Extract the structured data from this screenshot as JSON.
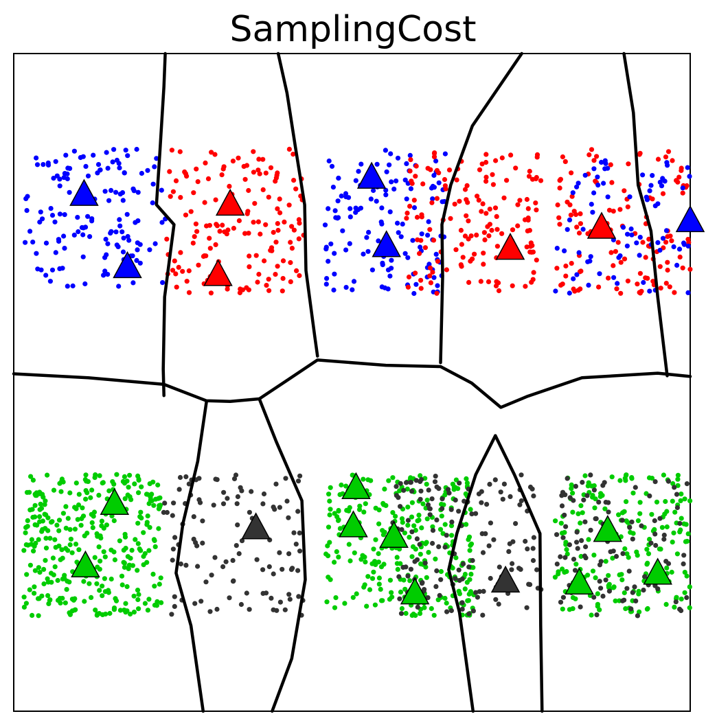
{
  "chart_data": {
    "type": "scatter",
    "title": "SamplingCost",
    "xlabel": "",
    "ylabel": "",
    "xlim": [
      0,
      1
    ],
    "ylim": [
      0,
      1
    ],
    "grid": false,
    "colors": {
      "blue": "#0000ff",
      "red": "#ff0000",
      "green": "#00cc00",
      "dark": "#333333",
      "boundary": "#000000"
    },
    "point_clusters": [
      {
        "class": "blue",
        "x": [
          0.015,
          0.225
        ],
        "y": [
          0.645,
          0.855
        ],
        "count": 140
      },
      {
        "class": "red",
        "x": [
          0.225,
          0.43
        ],
        "y": [
          0.635,
          0.855
        ],
        "count": 150
      },
      {
        "class": "blue",
        "x": [
          0.46,
          0.64
        ],
        "y": [
          0.635,
          0.855
        ],
        "count": 130
      },
      {
        "class": "red",
        "x": [
          0.58,
          0.78
        ],
        "y": [
          0.635,
          0.855
        ],
        "count": 150
      },
      {
        "class": "red",
        "x": [
          0.8,
          1.0
        ],
        "y": [
          0.635,
          0.855
        ],
        "count": 120
      },
      {
        "class": "blue",
        "x": [
          0.8,
          1.0
        ],
        "y": [
          0.635,
          0.855
        ],
        "count": 80
      },
      {
        "class": "green",
        "x": [
          0.015,
          0.22
        ],
        "y": [
          0.145,
          0.36
        ],
        "count": 330
      },
      {
        "class": "dark",
        "x": [
          0.22,
          0.43
        ],
        "y": [
          0.145,
          0.36
        ],
        "count": 110
      },
      {
        "class": "green",
        "x": [
          0.46,
          0.68
        ],
        "y": [
          0.145,
          0.36
        ],
        "count": 280
      },
      {
        "class": "dark",
        "x": [
          0.56,
          0.78
        ],
        "y": [
          0.145,
          0.36
        ],
        "count": 150
      },
      {
        "class": "green",
        "x": [
          0.8,
          1.0
        ],
        "y": [
          0.145,
          0.36
        ],
        "count": 190
      },
      {
        "class": "dark",
        "x": [
          0.8,
          1.0
        ],
        "y": [
          0.145,
          0.36
        ],
        "count": 110
      }
    ],
    "centers": [
      {
        "class": "blue",
        "x": 0.104,
        "y": 0.787
      },
      {
        "class": "blue",
        "x": 0.168,
        "y": 0.677
      },
      {
        "class": "red",
        "x": 0.32,
        "y": 0.772
      },
      {
        "class": "red",
        "x": 0.302,
        "y": 0.665
      },
      {
        "class": "blue",
        "x": 0.529,
        "y": 0.813
      },
      {
        "class": "blue",
        "x": 0.551,
        "y": 0.709
      },
      {
        "class": "red",
        "x": 0.734,
        "y": 0.705
      },
      {
        "class": "red",
        "x": 0.869,
        "y": 0.737
      },
      {
        "class": "blue",
        "x": 1.0,
        "y": 0.747
      },
      {
        "class": "green",
        "x": 0.149,
        "y": 0.317
      },
      {
        "class": "green",
        "x": 0.106,
        "y": 0.222
      },
      {
        "class": "dark",
        "x": 0.358,
        "y": 0.28
      },
      {
        "class": "green",
        "x": 0.506,
        "y": 0.341
      },
      {
        "class": "green",
        "x": 0.502,
        "y": 0.283
      },
      {
        "class": "green",
        "x": 0.562,
        "y": 0.267
      },
      {
        "class": "green",
        "x": 0.593,
        "y": 0.181
      },
      {
        "class": "dark",
        "x": 0.727,
        "y": 0.199
      },
      {
        "class": "green",
        "x": 0.878,
        "y": 0.276
      },
      {
        "class": "green",
        "x": 0.836,
        "y": 0.196
      },
      {
        "class": "green",
        "x": 0.952,
        "y": 0.211
      }
    ],
    "boundaries": [
      [
        [
          0.224,
          1.0
        ],
        [
          0.222,
          0.95
        ],
        [
          0.216,
          0.85
        ],
        [
          0.211,
          0.77
        ],
        [
          0.237,
          0.74
        ],
        [
          0.223,
          0.63
        ],
        [
          0.221,
          0.52
        ],
        [
          0.222,
          0.48
        ]
      ],
      [
        [
          0.391,
          1.0
        ],
        [
          0.404,
          0.94
        ],
        [
          0.416,
          0.86
        ],
        [
          0.43,
          0.77
        ],
        [
          0.432,
          0.67
        ],
        [
          0.445,
          0.57
        ],
        [
          0.449,
          0.54
        ]
      ],
      [
        [
          0.751,
          1.0
        ],
        [
          0.678,
          0.89
        ],
        [
          0.646,
          0.8
        ],
        [
          0.633,
          0.74
        ],
        [
          0.634,
          0.66
        ],
        [
          0.631,
          0.53
        ]
      ],
      [
        [
          0.902,
          1.0
        ],
        [
          0.916,
          0.91
        ],
        [
          0.923,
          0.8
        ],
        [
          0.942,
          0.73
        ],
        [
          0.952,
          0.63
        ],
        [
          0.966,
          0.51
        ]
      ],
      [
        [
          0.0,
          0.513
        ],
        [
          0.11,
          0.507
        ],
        [
          0.222,
          0.497
        ],
        [
          0.285,
          0.472
        ],
        [
          0.32,
          0.471
        ],
        [
          0.363,
          0.475
        ],
        [
          0.404,
          0.503
        ],
        [
          0.449,
          0.534
        ],
        [
          0.55,
          0.526
        ],
        [
          0.631,
          0.524
        ],
        [
          0.677,
          0.499
        ],
        [
          0.72,
          0.462
        ],
        [
          0.76,
          0.479
        ],
        [
          0.84,
          0.507
        ],
        [
          0.952,
          0.514
        ],
        [
          1.0,
          0.509
        ]
      ],
      [
        [
          0.285,
          0.471
        ],
        [
          0.272,
          0.38
        ],
        [
          0.25,
          0.285
        ],
        [
          0.24,
          0.21
        ],
        [
          0.262,
          0.13
        ],
        [
          0.28,
          0.0
        ]
      ],
      [
        [
          0.363,
          0.475
        ],
        [
          0.388,
          0.41
        ],
        [
          0.426,
          0.32
        ],
        [
          0.431,
          0.2
        ],
        [
          0.411,
          0.08
        ],
        [
          0.382,
          0.0
        ]
      ],
      [
        [
          0.712,
          0.419
        ],
        [
          0.683,
          0.36
        ],
        [
          0.655,
          0.27
        ],
        [
          0.643,
          0.215
        ],
        [
          0.659,
          0.15
        ],
        [
          0.679,
          0.0
        ]
      ],
      [
        [
          0.712,
          0.419
        ],
        [
          0.74,
          0.36
        ],
        [
          0.778,
          0.27
        ],
        [
          0.779,
          0.13
        ],
        [
          0.781,
          0.0
        ]
      ]
    ]
  }
}
